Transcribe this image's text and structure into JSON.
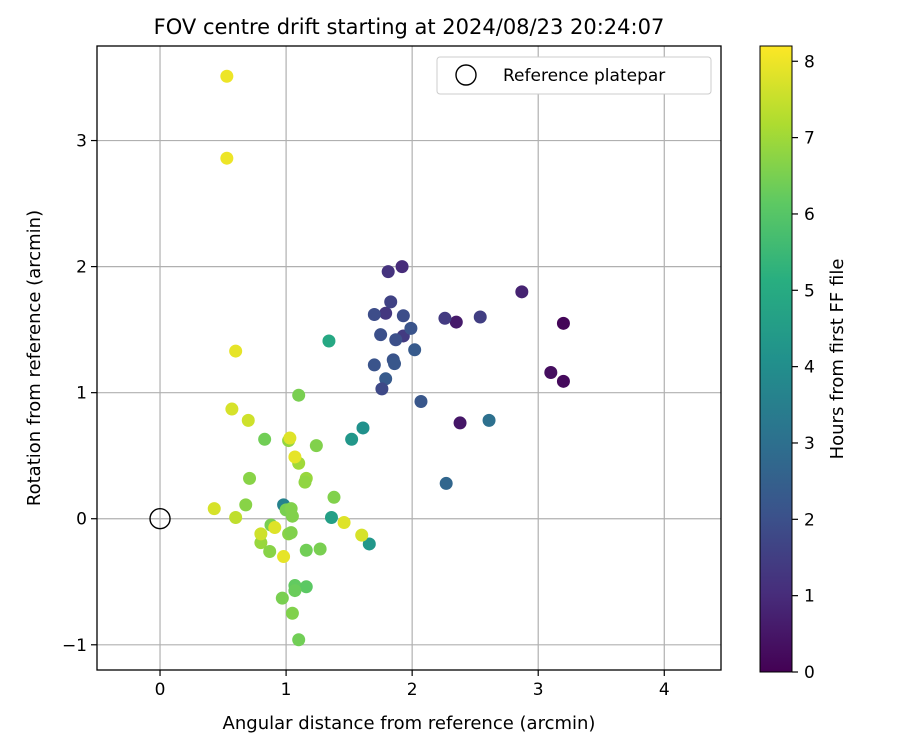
{
  "chart_data": {
    "type": "scatter",
    "title": "FOV centre drift starting at 2024/08/23 20:24:07",
    "xlabel": "Angular distance from reference (arcmin)",
    "ylabel": "Rotation from reference (arcmin)",
    "xlim": [
      -0.5,
      4.45
    ],
    "ylim": [
      -1.2,
      3.75
    ],
    "xticks": [
      0,
      1,
      2,
      3,
      4
    ],
    "yticks": [
      -1,
      0,
      1,
      2,
      3
    ],
    "grid": true,
    "legend": {
      "placement": "top-right",
      "entries": [
        "Reference platepar"
      ]
    },
    "reference_point": {
      "x": 0,
      "y": 0,
      "marker": "hollow-circle",
      "color": "#000000"
    },
    "colorbar": {
      "label": "Hours from first FF file",
      "range": [
        0,
        8.2
      ],
      "ticks": [
        0,
        1,
        2,
        3,
        4,
        5,
        6,
        7,
        8
      ],
      "colormap": "viridis"
    },
    "points": [
      {
        "x": 3.2,
        "y": 1.55,
        "c": 0.1
      },
      {
        "x": 3.2,
        "y": 1.09,
        "c": 0.2
      },
      {
        "x": 3.1,
        "y": 1.16,
        "c": 0.3
      },
      {
        "x": 2.87,
        "y": 1.8,
        "c": 0.8
      },
      {
        "x": 2.35,
        "y": 1.56,
        "c": 0.6
      },
      {
        "x": 2.38,
        "y": 0.76,
        "c": 0.5
      },
      {
        "x": 2.54,
        "y": 1.6,
        "c": 1.5
      },
      {
        "x": 2.26,
        "y": 1.59,
        "c": 1.4
      },
      {
        "x": 1.92,
        "y": 2.0,
        "c": 1.0
      },
      {
        "x": 1.81,
        "y": 1.96,
        "c": 1.2
      },
      {
        "x": 1.79,
        "y": 1.63,
        "c": 1.3
      },
      {
        "x": 1.83,
        "y": 1.72,
        "c": 1.6
      },
      {
        "x": 1.93,
        "y": 1.61,
        "c": 1.9
      },
      {
        "x": 1.7,
        "y": 1.62,
        "c": 1.9
      },
      {
        "x": 1.75,
        "y": 1.46,
        "c": 2.0
      },
      {
        "x": 1.93,
        "y": 1.45,
        "c": 1.4
      },
      {
        "x": 1.87,
        "y": 1.42,
        "c": 2.0
      },
      {
        "x": 1.99,
        "y": 1.51,
        "c": 2.1
      },
      {
        "x": 2.02,
        "y": 1.34,
        "c": 2.3
      },
      {
        "x": 1.85,
        "y": 1.26,
        "c": 2.1
      },
      {
        "x": 1.86,
        "y": 1.23,
        "c": 2.2
      },
      {
        "x": 1.7,
        "y": 1.22,
        "c": 2.1
      },
      {
        "x": 1.79,
        "y": 1.11,
        "c": 2.3
      },
      {
        "x": 1.76,
        "y": 1.03,
        "c": 1.8
      },
      {
        "x": 2.07,
        "y": 0.93,
        "c": 2.2
      },
      {
        "x": 2.61,
        "y": 0.78,
        "c": 3.0
      },
      {
        "x": 2.27,
        "y": 0.28,
        "c": 2.7
      },
      {
        "x": 1.34,
        "y": 1.41,
        "c": 4.9
      },
      {
        "x": 1.61,
        "y": 0.72,
        "c": 4.1
      },
      {
        "x": 1.52,
        "y": 0.63,
        "c": 4.3
      },
      {
        "x": 1.36,
        "y": 0.01,
        "c": 4.6
      },
      {
        "x": 1.66,
        "y": -0.2,
        "c": 4.3
      },
      {
        "x": 0.98,
        "y": 0.11,
        "c": 3.6
      },
      {
        "x": 1.1,
        "y": 0.98,
        "c": 6.5
      },
      {
        "x": 0.83,
        "y": 0.63,
        "c": 6.4
      },
      {
        "x": 1.24,
        "y": 0.58,
        "c": 6.6
      },
      {
        "x": 1.02,
        "y": 0.62,
        "c": 6.8
      },
      {
        "x": 1.1,
        "y": 0.44,
        "c": 7.0
      },
      {
        "x": 1.16,
        "y": 0.32,
        "c": 6.9
      },
      {
        "x": 1.15,
        "y": 0.29,
        "c": 6.8
      },
      {
        "x": 0.71,
        "y": 0.32,
        "c": 6.7
      },
      {
        "x": 0.68,
        "y": 0.11,
        "c": 6.7
      },
      {
        "x": 1.38,
        "y": 0.17,
        "c": 6.6
      },
      {
        "x": 1.0,
        "y": 0.07,
        "c": 6.5
      },
      {
        "x": 1.04,
        "y": 0.08,
        "c": 6.6
      },
      {
        "x": 1.05,
        "y": 0.02,
        "c": 6.6
      },
      {
        "x": 0.88,
        "y": -0.05,
        "c": 6.5
      },
      {
        "x": 1.02,
        "y": -0.12,
        "c": 6.7
      },
      {
        "x": 1.04,
        "y": -0.11,
        "c": 6.6
      },
      {
        "x": 0.8,
        "y": -0.19,
        "c": 6.9
      },
      {
        "x": 0.87,
        "y": -0.26,
        "c": 6.7
      },
      {
        "x": 1.16,
        "y": -0.25,
        "c": 6.4
      },
      {
        "x": 1.27,
        "y": -0.24,
        "c": 6.5
      },
      {
        "x": 0.97,
        "y": -0.63,
        "c": 6.5
      },
      {
        "x": 1.07,
        "y": -0.53,
        "c": 6.2
      },
      {
        "x": 1.16,
        "y": -0.54,
        "c": 6.1
      },
      {
        "x": 1.07,
        "y": -0.57,
        "c": 6.3
      },
      {
        "x": 1.05,
        "y": -0.75,
        "c": 6.6
      },
      {
        "x": 1.1,
        "y": -0.96,
        "c": 6.4
      },
      {
        "x": 0.53,
        "y": 3.51,
        "c": 8.0
      },
      {
        "x": 0.53,
        "y": 2.86,
        "c": 8.0
      },
      {
        "x": 0.6,
        "y": 1.33,
        "c": 7.9
      },
      {
        "x": 0.57,
        "y": 0.87,
        "c": 7.7
      },
      {
        "x": 0.7,
        "y": 0.78,
        "c": 7.6
      },
      {
        "x": 1.03,
        "y": 0.64,
        "c": 7.8
      },
      {
        "x": 1.07,
        "y": 0.49,
        "c": 7.9
      },
      {
        "x": 0.43,
        "y": 0.08,
        "c": 7.7
      },
      {
        "x": 0.6,
        "y": 0.01,
        "c": 7.4
      },
      {
        "x": 0.8,
        "y": -0.12,
        "c": 7.6
      },
      {
        "x": 0.91,
        "y": -0.07,
        "c": 7.8
      },
      {
        "x": 0.98,
        "y": -0.3,
        "c": 7.9
      },
      {
        "x": 1.46,
        "y": -0.03,
        "c": 7.8
      },
      {
        "x": 1.6,
        "y": -0.13,
        "c": 7.7
      }
    ]
  }
}
